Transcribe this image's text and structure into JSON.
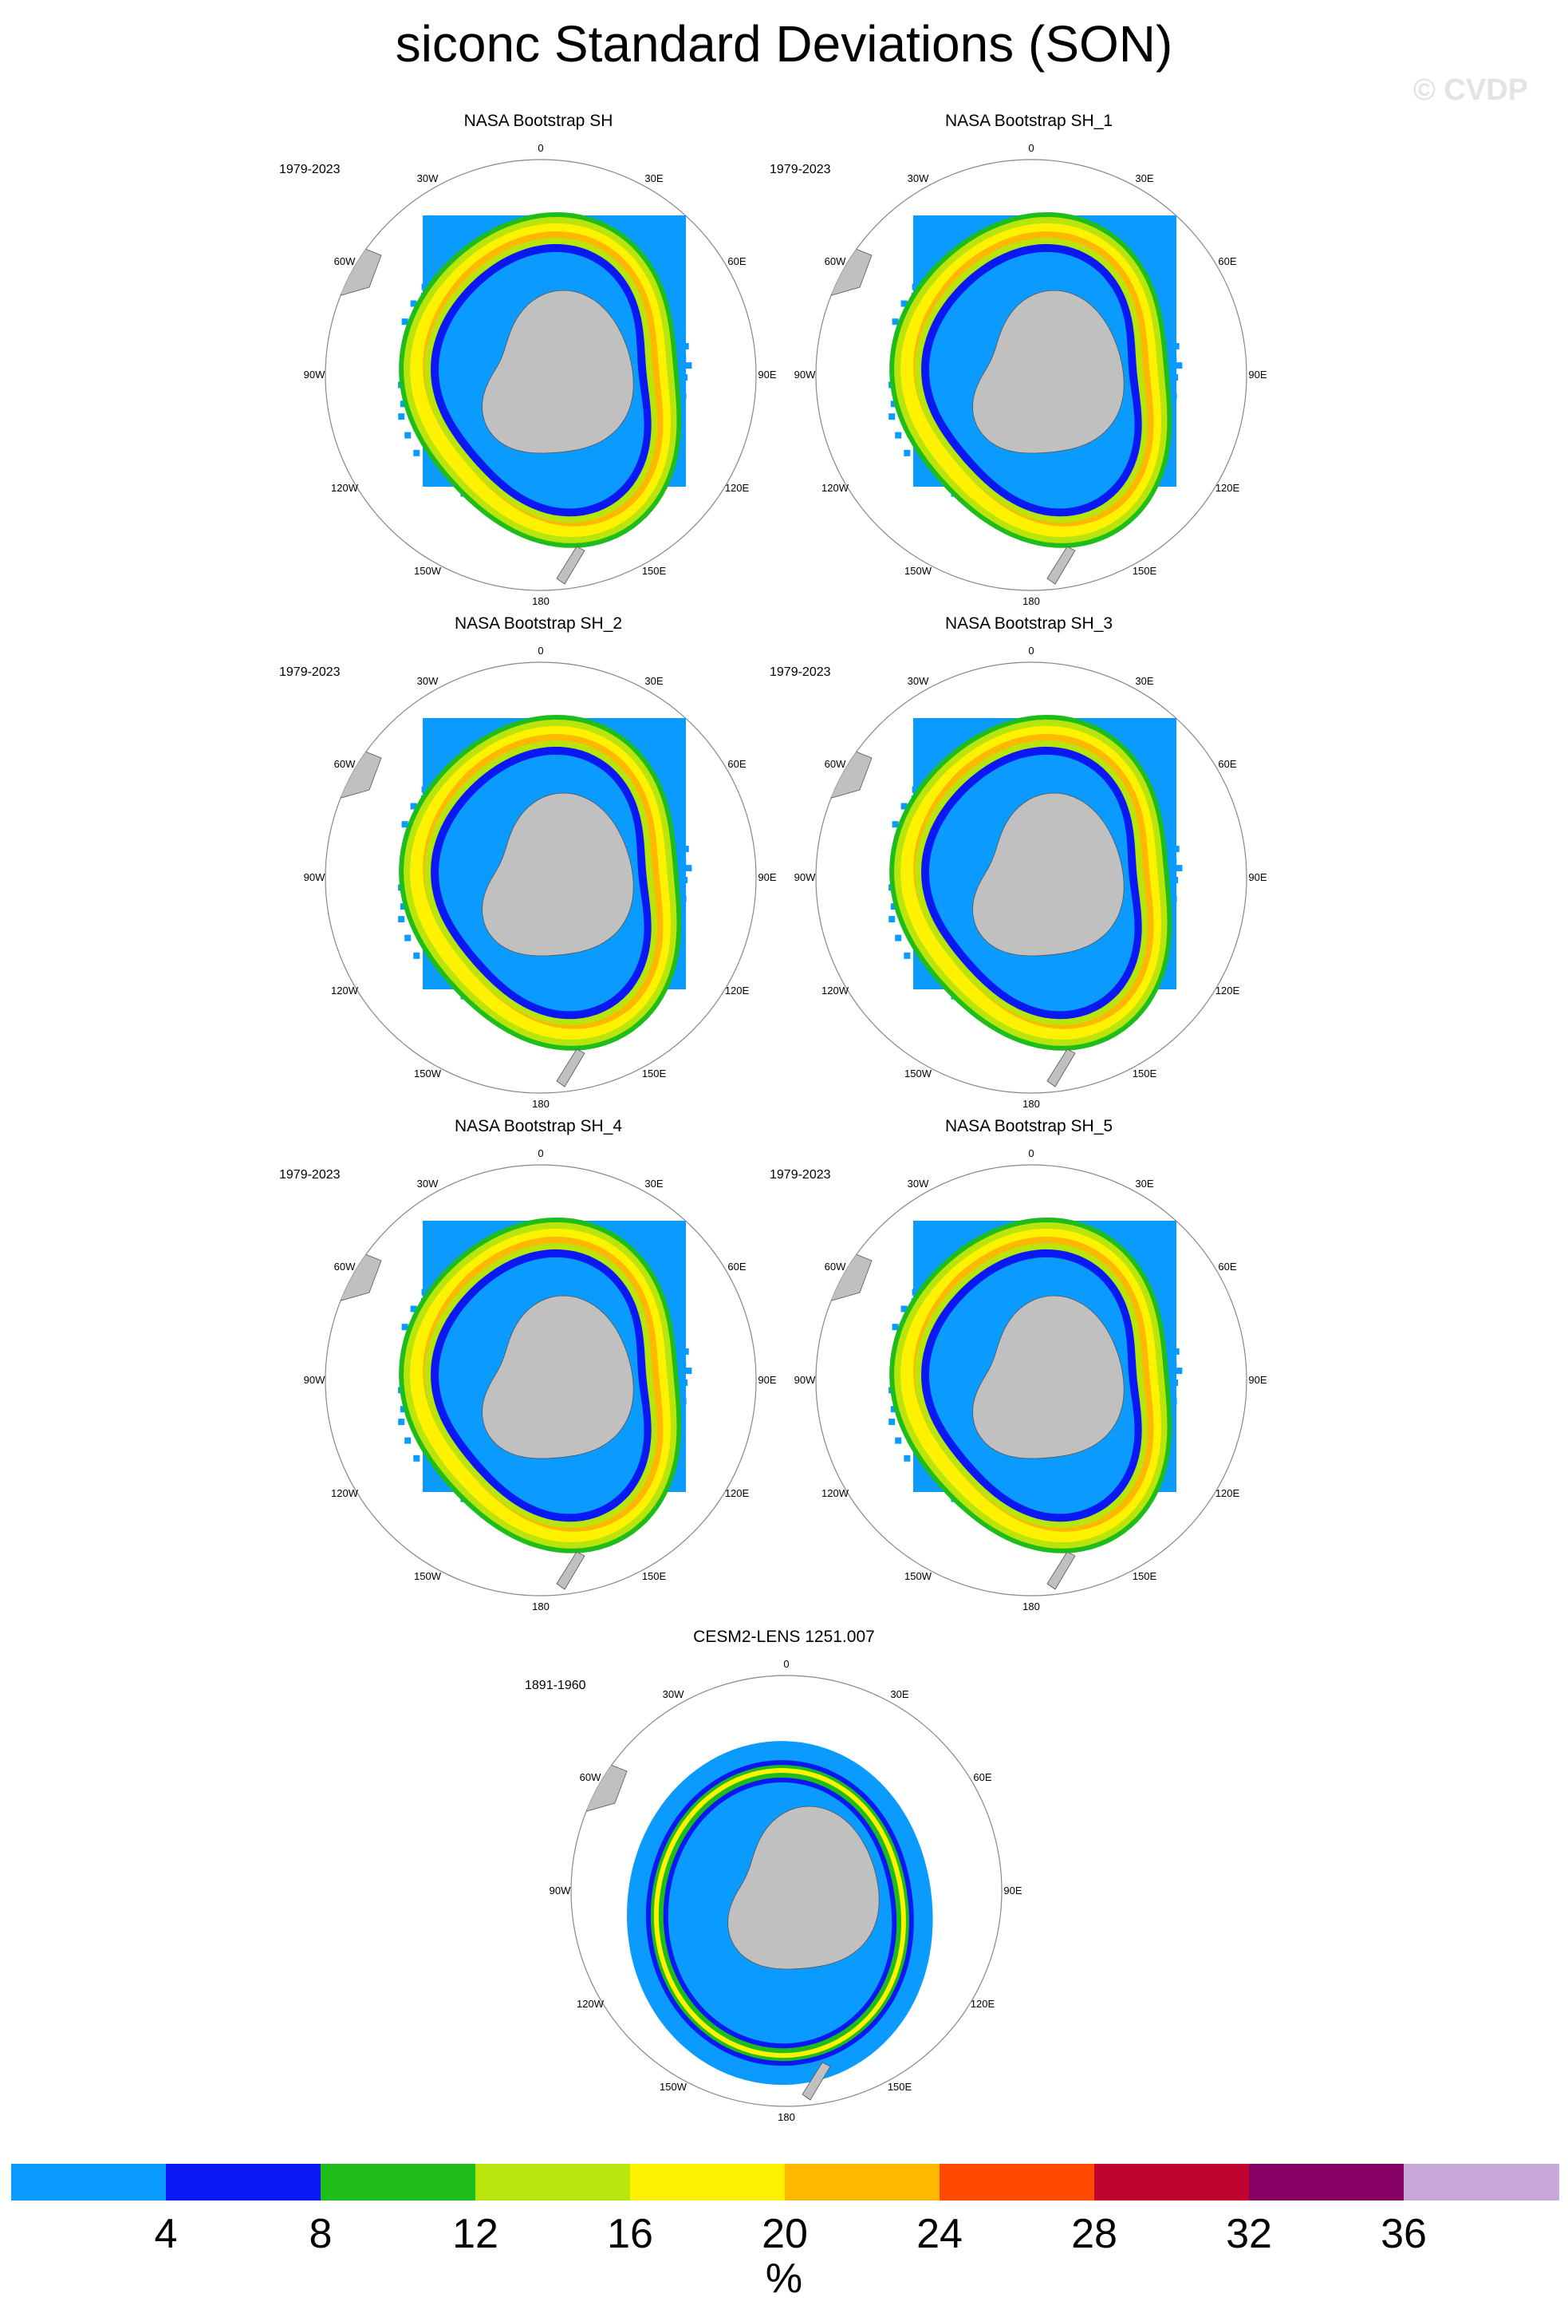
{
  "title": "siconc Standard Deviations (SON)",
  "watermark": "© CVDP",
  "longitude_labels": [
    "0",
    "30E",
    "60E",
    "90E",
    "120E",
    "150E",
    "180",
    "150W",
    "120W",
    "90W",
    "60W",
    "30W"
  ],
  "panels": [
    {
      "title": "NASA Bootstrap SH",
      "period": "1979-2023"
    },
    {
      "title": "NASA Bootstrap SH_1",
      "period": "1979-2023"
    },
    {
      "title": "NASA Bootstrap SH_2",
      "period": "1979-2023"
    },
    {
      "title": "NASA Bootstrap SH_3",
      "period": "1979-2023"
    },
    {
      "title": "NASA Bootstrap SH_4",
      "period": "1979-2023"
    },
    {
      "title": "NASA Bootstrap SH_5",
      "period": "1979-2023"
    },
    {
      "title": "CESM2-LENS 1251.007",
      "period": "1891-1960"
    }
  ],
  "colorbar": {
    "colors": [
      "#0b9bff",
      "#0a18f4",
      "#1ebd1a",
      "#b9e50c",
      "#fff200",
      "#ffb700",
      "#ff4800",
      "#c10330",
      "#870064",
      "#c8a8d8"
    ],
    "labels": [
      "4",
      "8",
      "12",
      "16",
      "20",
      "24",
      "28",
      "32",
      "36"
    ],
    "units": "%"
  },
  "colors": {
    "land": "#c0c0c0",
    "circle": "#888888"
  }
}
